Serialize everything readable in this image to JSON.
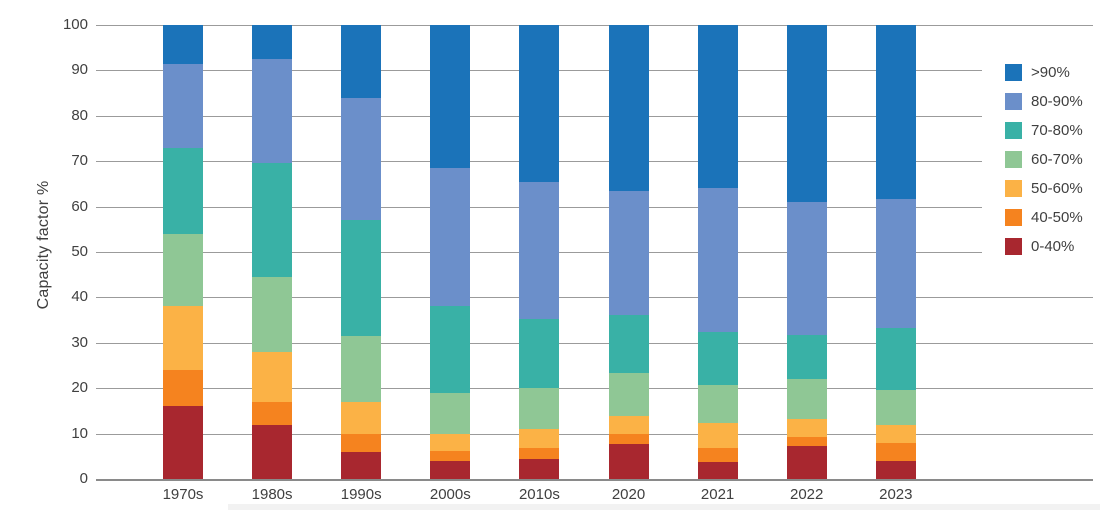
{
  "chart_data": {
    "type": "bar",
    "stacked": true,
    "title": "",
    "xlabel": "",
    "ylabel": "Capacity factor %",
    "ylim": [
      0,
      100
    ],
    "yticks": [
      0,
      10,
      20,
      30,
      40,
      50,
      60,
      70,
      80,
      90,
      100
    ],
    "grid": true,
    "legend_position": "right",
    "legend_order": "top-to-bottom is last-to-first series",
    "categories": [
      "1970s",
      "1980s",
      "1990s",
      "2000s",
      "2010s",
      "2020",
      "2021",
      "2022",
      "2023"
    ],
    "series": [
      {
        "name": "0-40%",
        "color": "#a8272f",
        "values": [
          16,
          12,
          6,
          4,
          4.5,
          7.7,
          3.8,
          7.2,
          3.9
        ]
      },
      {
        "name": "40-50%",
        "color": "#f5831f",
        "values": [
          8,
          5,
          4,
          2.2,
          2.3,
          2.2,
          3,
          2.1,
          4
        ]
      },
      {
        "name": "50-60%",
        "color": "#fbb246",
        "values": [
          14,
          11,
          7,
          3.8,
          4.2,
          4,
          5.5,
          3.9,
          4.1
        ]
      },
      {
        "name": "60-70%",
        "color": "#8fc795",
        "values": [
          16,
          16.5,
          14.5,
          9,
          9,
          9.4,
          8.3,
          8.8,
          7.5
        ]
      },
      {
        "name": "70-80%",
        "color": "#39b1a6",
        "values": [
          19,
          25,
          25.5,
          19,
          15.2,
          12.9,
          11.7,
          9.8,
          13.7
        ]
      },
      {
        "name": "80-90%",
        "color": "#6b8fca",
        "values": [
          18.5,
          23,
          27,
          30.5,
          30.2,
          27.3,
          31.7,
          29.3,
          28.5
        ]
      },
      {
        "name": ">90%",
        "color": "#1b73b9",
        "values": [
          8.5,
          7.5,
          16,
          31.5,
          34.6,
          36.5,
          36,
          38.9,
          38.3
        ]
      }
    ]
  },
  "colors": {
    "grid": "#9b9b9b",
    "axis": "#8a8a8a",
    "text": "#404040",
    "background": "#ffffff"
  }
}
